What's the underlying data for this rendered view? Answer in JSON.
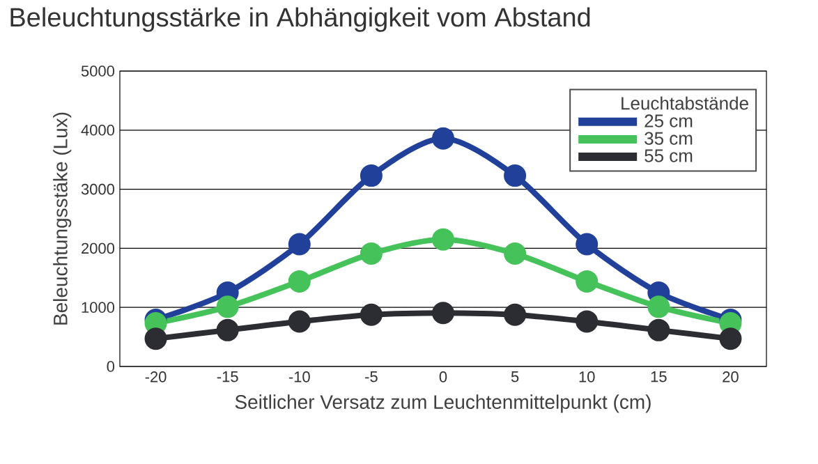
{
  "chart_data": {
    "type": "line",
    "title": "Beleuchtungsstärke in Abhängigkeit vom Abstand",
    "xlabel": "Seitlicher Versatz zum Leuchtenmittelpunkt (cm)",
    "ylabel": "Beleuchtungsstäke (Lux)",
    "legend_title": "Leuchtabstände",
    "x": [
      -20,
      -15,
      -10,
      -5,
      0,
      5,
      10,
      15,
      20
    ],
    "series": [
      {
        "name": "25 cm",
        "color": "#21409a",
        "values": [
          790,
          1250,
          2070,
          3230,
          3860,
          3230,
          2070,
          1250,
          790
        ]
      },
      {
        "name": "35 cm",
        "color": "#45c35a",
        "values": [
          730,
          1010,
          1440,
          1910,
          2150,
          1910,
          1440,
          1010,
          730
        ]
      },
      {
        "name": "55 cm",
        "color": "#2b2d33",
        "values": [
          470,
          615,
          760,
          875,
          905,
          875,
          760,
          615,
          470
        ]
      }
    ],
    "xlim": [
      -22.5,
      22.5
    ],
    "ylim": [
      0,
      5000
    ],
    "xticks": [
      -20,
      -15,
      -10,
      -5,
      0,
      5,
      10,
      15,
      20
    ],
    "yticks": [
      0,
      1000,
      2000,
      3000,
      4000,
      5000
    ],
    "grid": "y",
    "legend": "top right",
    "marker": "circle",
    "line_style": "solid"
  }
}
